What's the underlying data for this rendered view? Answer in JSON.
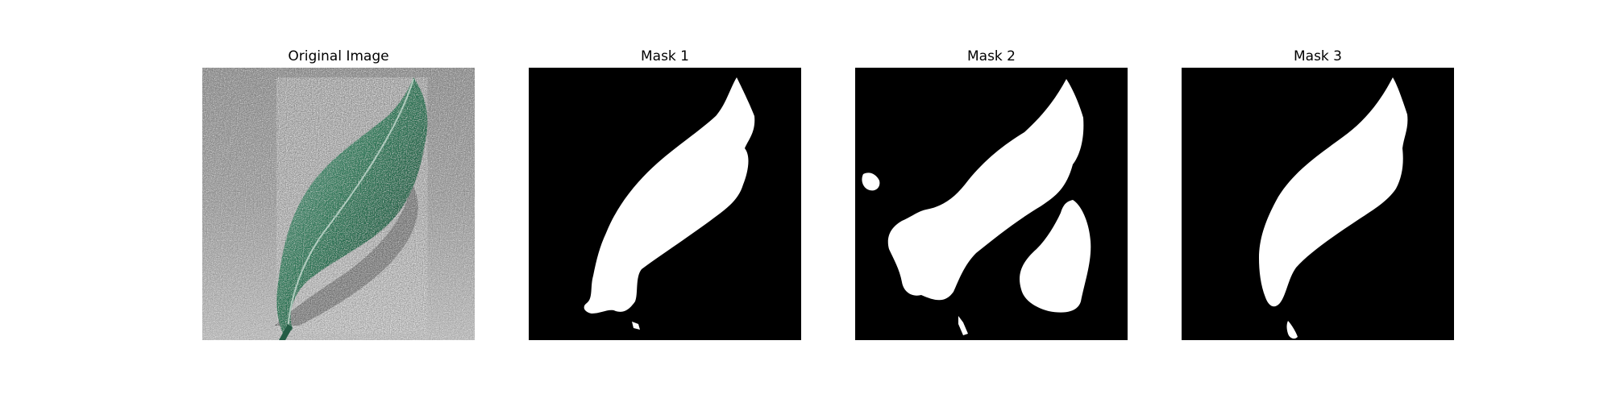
{
  "figure": {
    "panels": [
      {
        "title": "Original Image",
        "kind": "photo",
        "subject": "leaf-on-gray-surface"
      },
      {
        "title": "Mask 1",
        "kind": "binary-mask"
      },
      {
        "title": "Mask 2",
        "kind": "binary-mask"
      },
      {
        "title": "Mask 3",
        "kind": "binary-mask"
      }
    ]
  },
  "colors": {
    "mask_background": "#000000",
    "mask_foreground": "#ffffff",
    "leaf_green": "#2f7a5a",
    "surface_gray": "#a9a9a9"
  }
}
